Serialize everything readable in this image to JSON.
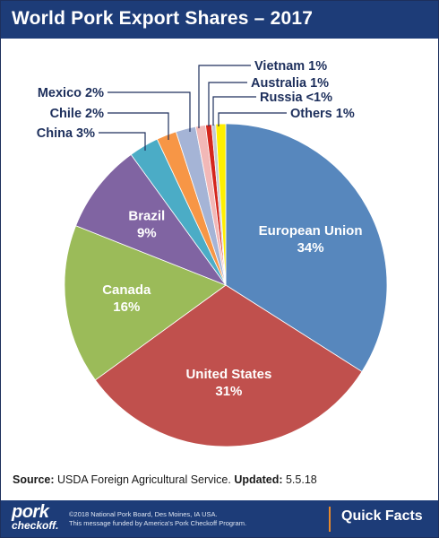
{
  "header": {
    "title": "World Pork Export Shares – 2017"
  },
  "chart_data": {
    "type": "pie",
    "title": "World Pork Export Shares – 2017",
    "slices": [
      {
        "label": "European Union",
        "value_label": "34%",
        "value": 34.0,
        "color": "#5787bd",
        "label_mode": "inside",
        "label_lines": [
          "European Union",
          "34%"
        ]
      },
      {
        "label": "United States",
        "value_label": "31%",
        "value": 31.0,
        "color": "#c0504d",
        "label_mode": "inside",
        "label_lines": [
          "United States",
          "31%"
        ]
      },
      {
        "label": "Canada",
        "value_label": "16%",
        "value": 16.0,
        "color": "#9bbb59",
        "label_mode": "inside",
        "label_lines": [
          "Canada",
          "16%"
        ]
      },
      {
        "label": "Brazil",
        "value_label": "9%",
        "value": 9.0,
        "color": "#8064a2",
        "label_mode": "inside",
        "label_lines": [
          "Brazil",
          "9%"
        ]
      },
      {
        "label": "China",
        "value_label": "3%",
        "value": 3.0,
        "color": "#4bacc6",
        "label_mode": "outside",
        "label_lines": [
          "China 3%"
        ]
      },
      {
        "label": "Chile",
        "value_label": "2%",
        "value": 2.0,
        "color": "#f79646",
        "label_mode": "outside",
        "label_lines": [
          "Chile 2%"
        ]
      },
      {
        "label": "Mexico",
        "value_label": "2%",
        "value": 2.0,
        "color": "#a5b4d6",
        "label_mode": "outside",
        "label_lines": [
          "Mexico 2%"
        ]
      },
      {
        "label": "Vietnam",
        "value_label": "1%",
        "value": 1.0,
        "color": "#f2b8b7",
        "label_mode": "outside",
        "label_lines": [
          "Vietnam 1%"
        ]
      },
      {
        "label": "Australia",
        "value_label": "1%",
        "value": 0.6,
        "color": "#d4261d",
        "label_mode": "outside",
        "label_lines": [
          "Australia 1%"
        ]
      },
      {
        "label": "Russia",
        "value_label": "<1%",
        "value": 0.4,
        "color": "#c2c8d3",
        "label_mode": "outside",
        "label_lines": [
          "Russia <1%"
        ]
      },
      {
        "label": "Others",
        "value_label": "1%",
        "value": 1.0,
        "color": "#ffef00",
        "label_mode": "outside",
        "label_lines": [
          "Others 1%"
        ]
      }
    ]
  },
  "source": {
    "source_label": "Source:",
    "source_text": " USDA Foreign Agricultural Service.  ",
    "updated_label": "Updated:",
    "updated_text": " 5.5.18"
  },
  "footer": {
    "logo_line1": "pork",
    "logo_line2": "checkoff.",
    "copyright_line1": "©2018 National Pork Board, Des Moines, IA USA.",
    "copyright_line2": "This message funded by America's Pork Checkoff Program.",
    "tag": "Quick Facts"
  }
}
